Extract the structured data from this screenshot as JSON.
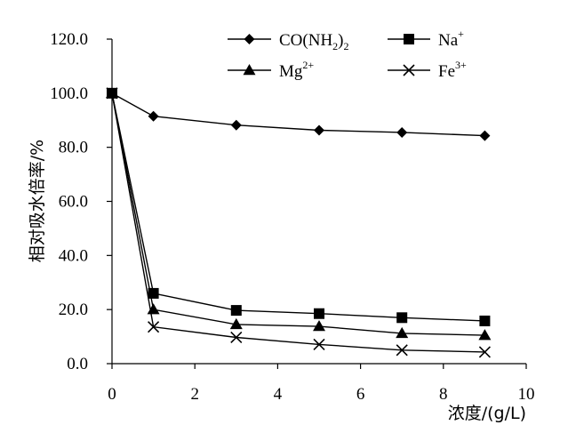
{
  "chart_data": {
    "type": "line",
    "xlabel": "浓度/(g/L)",
    "ylabel": "相对吸水倍率/%",
    "xlim": [
      0,
      10
    ],
    "ylim": [
      0,
      120
    ],
    "x_ticks": [
      "0",
      "2",
      "4",
      "6",
      "8",
      "10"
    ],
    "y_ticks": [
      "0.0",
      "20.0",
      "40.0",
      "60.0",
      "80.0",
      "100.0",
      "120.0"
    ],
    "x": [
      0,
      1,
      3,
      5,
      7,
      9
    ],
    "series": [
      {
        "name": "CO(NH2)2",
        "label_main": "CO(NH",
        "label_sub": "2",
        "label_close": ")",
        "label_sub2": "2",
        "label_sup": "",
        "marker": "diamond-icon",
        "values": [
          100.0,
          91.5,
          88.2,
          86.3,
          85.5,
          84.3
        ]
      },
      {
        "name": "Na+",
        "label_main": "Na",
        "label_sub": "",
        "label_close": "",
        "label_sub2": "",
        "label_sup": "+",
        "marker": "square-icon",
        "values": [
          100.0,
          26.0,
          19.7,
          18.5,
          17.0,
          15.8
        ]
      },
      {
        "name": "Mg2+",
        "label_main": "Mg",
        "label_sub": "",
        "label_close": "",
        "label_sub2": "",
        "label_sup": "2+",
        "marker": "triangle-icon",
        "values": [
          100.0,
          20.0,
          14.5,
          13.8,
          11.2,
          10.5
        ]
      },
      {
        "name": "Fe3+",
        "label_main": "Fe",
        "label_sub": "",
        "label_close": "",
        "label_sub2": "",
        "label_sup": "3+",
        "marker": "cross-icon",
        "values": [
          100.0,
          13.6,
          9.7,
          7.1,
          5.0,
          4.3
        ]
      }
    ],
    "legend_position": "top",
    "grid": false,
    "color": "#000000"
  }
}
